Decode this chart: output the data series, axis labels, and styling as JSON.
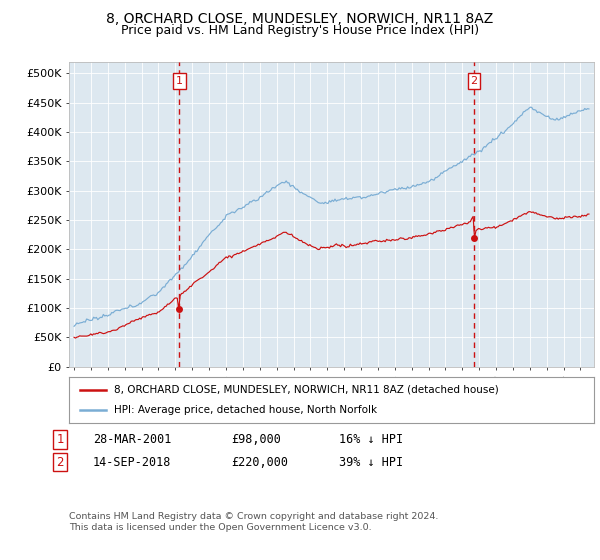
{
  "title": "8, ORCHARD CLOSE, MUNDESLEY, NORWICH, NR11 8AZ",
  "subtitle": "Price paid vs. HM Land Registry's House Price Index (HPI)",
  "title_fontsize": 10,
  "subtitle_fontsize": 9,
  "background_color": "#ffffff",
  "plot_bg_color": "#dde8f0",
  "hpi_color": "#7aadd4",
  "price_color": "#cc1111",
  "marker_vline_color": "#cc1111",
  "marker_box_color": "#cc1111",
  "sale1_price": 98000,
  "sale1_year": 2001.23,
  "sale2_price": 220000,
  "sale2_year": 2018.7,
  "legend_label_price": "8, ORCHARD CLOSE, MUNDESLEY, NORWICH, NR11 8AZ (detached house)",
  "legend_label_hpi": "HPI: Average price, detached house, North Norfolk",
  "footer": "Contains HM Land Registry data © Crown copyright and database right 2024.\nThis data is licensed under the Open Government Licence v3.0.",
  "xmin": 1994.7,
  "xmax": 2025.8,
  "ylim": [
    0,
    520000
  ],
  "ytick_labels": [
    "£0",
    "£50K",
    "£100K",
    "£150K",
    "£200K",
    "£250K",
    "£300K",
    "£350K",
    "£400K",
    "£450K",
    "£500K"
  ]
}
